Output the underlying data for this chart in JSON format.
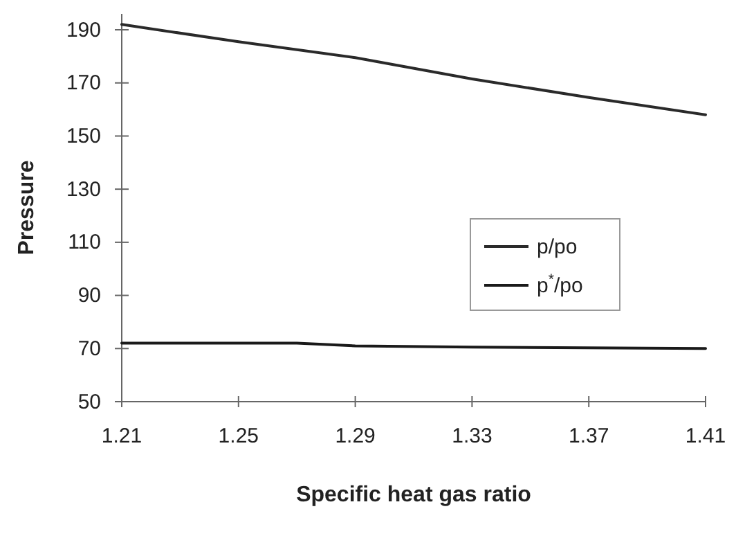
{
  "chart_data": {
    "type": "line",
    "xlabel": "Specific heat gas ratio",
    "ylabel": "Pressure",
    "xlim": [
      1.21,
      1.41
    ],
    "xticks": [
      1.21,
      1.25,
      1.29,
      1.33,
      1.37,
      1.41
    ],
    "ylim": [
      50,
      196
    ],
    "yticks": [
      50,
      70,
      90,
      110,
      130,
      150,
      170,
      190
    ],
    "grid": false,
    "legend": "right",
    "marker": "none",
    "line_style": "solid",
    "series": [
      {
        "name": "p/po",
        "color": "#2a2a2a",
        "x": [
          1.21,
          1.25,
          1.29,
          1.33,
          1.37,
          1.41
        ],
        "values": [
          192,
          185.5,
          179.5,
          171.5,
          164.5,
          158
        ]
      },
      {
        "name": "p$^{*}$/po",
        "color": "#1a1a1a",
        "x": [
          1.21,
          1.25,
          1.27,
          1.29,
          1.33,
          1.41
        ],
        "values": [
          72,
          72,
          72,
          71,
          70.5,
          70
        ]
      }
    ]
  }
}
